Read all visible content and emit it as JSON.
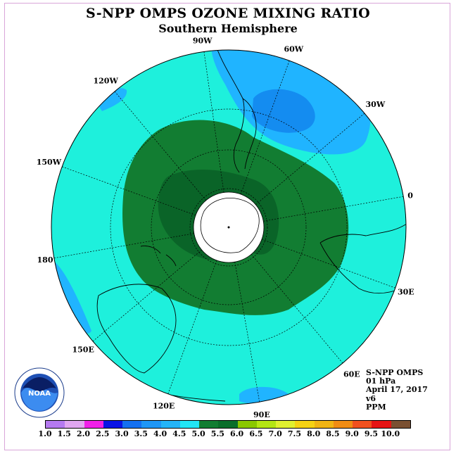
{
  "title": "S-NPP OMPS OZONE MIXING RATIO",
  "subtitle": "Southern Hemisphere",
  "info": {
    "line1": "S-NPP OMPS",
    "line2": "01 hPa",
    "line3": "April 17, 2017",
    "line4": "v6",
    "line5": "PPM"
  },
  "logo_text": "NOAA",
  "longitude_labels": [
    "90W",
    "60W",
    "30W",
    "0",
    "30E",
    "60E",
    "90E",
    "120E",
    "150E",
    "180",
    "150W",
    "120W"
  ],
  "colorbar": {
    "ticks": [
      "1.0",
      "1.5",
      "2.0",
      "2.5",
      "3.0",
      "3.5",
      "4.0",
      "4.5",
      "5.0",
      "5.5",
      "6.0",
      "6.5",
      "7.0",
      "7.5",
      "8.0",
      "8.5",
      "9.0",
      "9.5",
      "10.0"
    ],
    "colors": [
      "#b57af0",
      "#e0a6f0",
      "#f020e8",
      "#0a14e6",
      "#1470f0",
      "#1e96f5",
      "#24b4f8",
      "#22e6f5",
      "#127d32",
      "#0a6e2a",
      "#8ac800",
      "#b4e614",
      "#e0f030",
      "#f5d214",
      "#f0b414",
      "#f08c14",
      "#f0501e",
      "#e61414",
      "#7a5032"
    ]
  },
  "map_colors": {
    "ocean_band": "#1ef0dc",
    "low": "#20b4ff",
    "lower": "#148cf0",
    "high": "#127d32",
    "higher": "#0a6428",
    "pole": "#ffffff"
  }
}
